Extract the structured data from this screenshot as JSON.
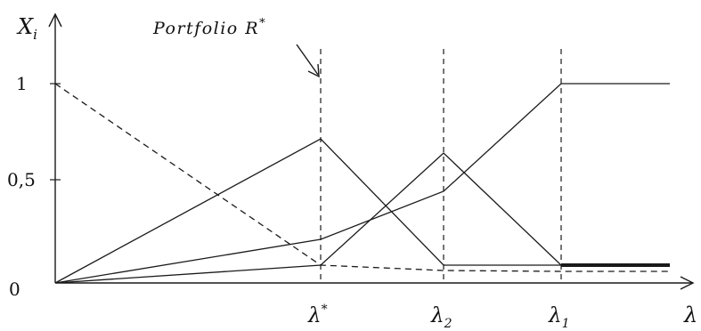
{
  "axes": {
    "y_label": "X",
    "y_label_sub": "i",
    "x_label": "λ",
    "y_ticks": [
      "0",
      "0,5",
      "1"
    ]
  },
  "annotation": {
    "text": "Portfolio R",
    "sup": "*"
  },
  "x_markers": [
    {
      "base": "λ",
      "sup": "*",
      "sub": ""
    },
    {
      "base": "λ",
      "sup": "",
      "sub": "2"
    },
    {
      "base": "λ",
      "sup": "",
      "sub": "1"
    }
  ],
  "colors": {
    "line": "#1a1a1a",
    "background": "#ffffff"
  }
}
